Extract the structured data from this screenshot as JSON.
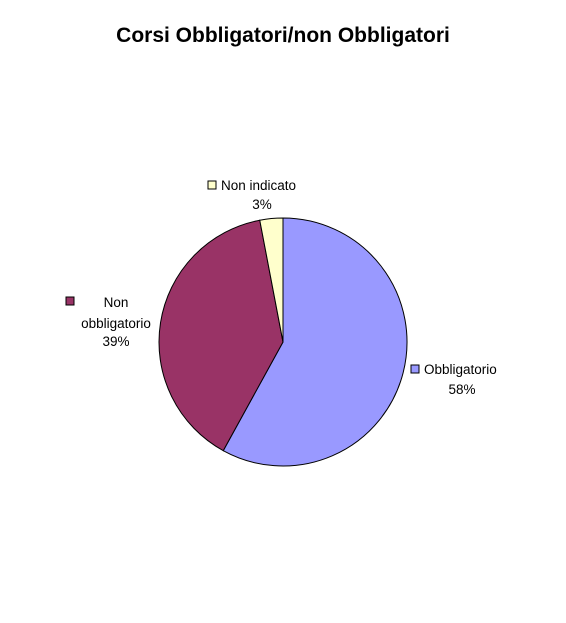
{
  "chart_data": {
    "type": "pie",
    "title": "Corsi Obbligatori/non Obbligatori",
    "slices": [
      {
        "label": "Obbligatorio",
        "label_lines": [
          "Obbligatorio",
          "58%"
        ],
        "value": 58,
        "percent_label": "58%",
        "color": "#9999FF"
      },
      {
        "label": "Non obbligatorio",
        "label_lines": [
          "Non",
          "obbligatorio",
          "39%"
        ],
        "value": 39,
        "percent_label": "39%",
        "color": "#993366"
      },
      {
        "label": "Non indicato",
        "label_lines": [
          "Non indicato",
          "3%"
        ],
        "value": 3,
        "percent_label": "3%",
        "color": "#FFFFCC"
      }
    ],
    "legend": "none",
    "data_labels": "outside-with-key"
  }
}
